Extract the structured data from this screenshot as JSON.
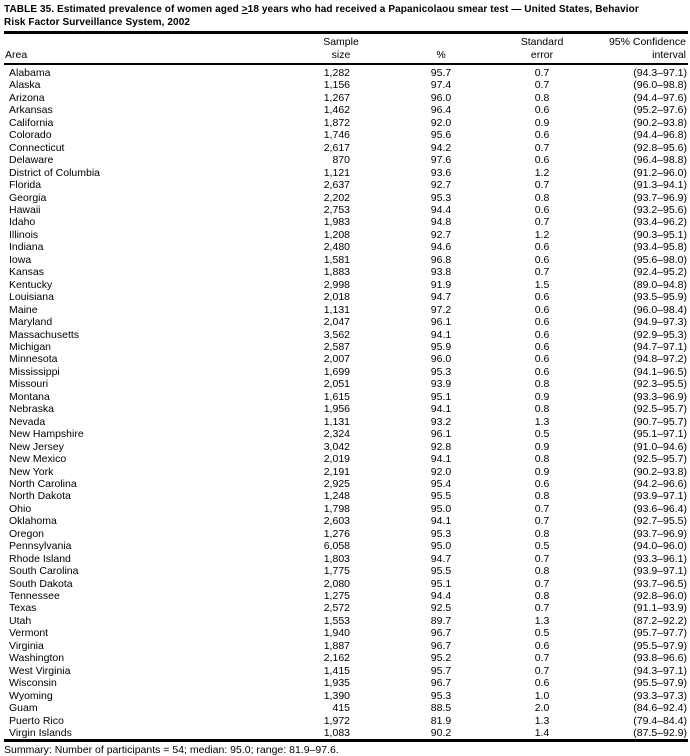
{
  "colors": {
    "text": "#000000",
    "background": "#ffffff"
  },
  "title": {
    "part1": "TABLE 35. Estimated prevalence of women aged ",
    "geq": ">",
    "part2": "18 years who had received a Papanicolaou smear test — United States, Behavior",
    "line2": "Risk Factor Surveillance System, 2002"
  },
  "table": {
    "columns": [
      "Area",
      "Sample\nsize",
      "%",
      "Standard\nerror",
      "95% Confidence\ninterval"
    ],
    "rows": [
      [
        "Alabama",
        "1,282",
        "95.7",
        "0.7",
        "(94.3–97.1)"
      ],
      [
        "Alaska",
        "1,156",
        "97.4",
        "0.7",
        "(96.0–98.8)"
      ],
      [
        "Arizona",
        "1,267",
        "96.0",
        "0.8",
        "(94.4–97.6)"
      ],
      [
        "Arkansas",
        "1,462",
        "96.4",
        "0.6",
        "(95.2–97.6)"
      ],
      [
        "California",
        "1,872",
        "92.0",
        "0.9",
        "(90.2–93.8)"
      ],
      [
        "Colorado",
        "1,746",
        "95.6",
        "0.6",
        "(94.4–96.8)"
      ],
      [
        "Connecticut",
        "2,617",
        "94.2",
        "0.7",
        "(92.8–95.6)"
      ],
      [
        "Delaware",
        "870",
        "97.6",
        "0.6",
        "(96.4–98.8)"
      ],
      [
        "District of Columbia",
        "1,121",
        "93.6",
        "1.2",
        "(91.2–96.0)"
      ],
      [
        "Florida",
        "2,637",
        "92.7",
        "0.7",
        "(91.3–94.1)"
      ],
      [
        "Georgia",
        "2,202",
        "95.3",
        "0.8",
        "(93.7–96.9)"
      ],
      [
        "Hawaii",
        "2,753",
        "94.4",
        "0.6",
        "(93.2–95.6)"
      ],
      [
        "Idaho",
        "1,983",
        "94.8",
        "0.7",
        "(93.4–96.2)"
      ],
      [
        "Illinois",
        "1,208",
        "92.7",
        "1.2",
        "(90.3–95.1)"
      ],
      [
        "Indiana",
        "2,480",
        "94.6",
        "0.6",
        "(93.4–95.8)"
      ],
      [
        "Iowa",
        "1,581",
        "96.8",
        "0.6",
        "(95.6–98.0)"
      ],
      [
        "Kansas",
        "1,883",
        "93.8",
        "0.7",
        "(92.4–95.2)"
      ],
      [
        "Kentucky",
        "2,998",
        "91.9",
        "1.5",
        "(89.0–94.8)"
      ],
      [
        "Louisiana",
        "2,018",
        "94.7",
        "0.6",
        "(93.5–95.9)"
      ],
      [
        "Maine",
        "1,131",
        "97.2",
        "0.6",
        "(96.0–98.4)"
      ],
      [
        "Maryland",
        "2,047",
        "96.1",
        "0.6",
        "(94.9–97.3)"
      ],
      [
        "Massachusetts",
        "3,562",
        "94.1",
        "0.6",
        "(92.9–95.3)"
      ],
      [
        "Michigan",
        "2,587",
        "95.9",
        "0.6",
        "(94.7–97.1)"
      ],
      [
        "Minnesota",
        "2,007",
        "96.0",
        "0.6",
        "(94.8–97.2)"
      ],
      [
        "Mississippi",
        "1,699",
        "95.3",
        "0.6",
        "(94.1–96.5)"
      ],
      [
        "Missouri",
        "2,051",
        "93.9",
        "0.8",
        "(92.3–95.5)"
      ],
      [
        "Montana",
        "1,615",
        "95.1",
        "0.9",
        "(93.3–96.9)"
      ],
      [
        "Nebraska",
        "1,956",
        "94.1",
        "0.8",
        "(92.5–95.7)"
      ],
      [
        "Nevada",
        "1,131",
        "93.2",
        "1.3",
        "(90.7–95.7)"
      ],
      [
        "New Hampshire",
        "2,324",
        "96.1",
        "0.5",
        "(95.1–97.1)"
      ],
      [
        "New Jersey",
        "3,042",
        "92.8",
        "0.9",
        "(91.0–94.6)"
      ],
      [
        "New Mexico",
        "2,019",
        "94.1",
        "0.8",
        "(92.5–95.7)"
      ],
      [
        "New York",
        "2,191",
        "92.0",
        "0.9",
        "(90.2–93.8)"
      ],
      [
        "North Carolina",
        "2,925",
        "95.4",
        "0.6",
        "(94.2–96.6)"
      ],
      [
        "North Dakota",
        "1,248",
        "95.5",
        "0.8",
        "(93.9–97.1)"
      ],
      [
        "Ohio",
        "1,798",
        "95.0",
        "0.7",
        "(93.6–96.4)"
      ],
      [
        "Oklahoma",
        "2,603",
        "94.1",
        "0.7",
        "(92.7–95.5)"
      ],
      [
        "Oregon",
        "1,276",
        "95.3",
        "0.8",
        "(93.7–96.9)"
      ],
      [
        "Pennsylvania",
        "6,058",
        "95.0",
        "0.5",
        "(94.0–96.0)"
      ],
      [
        "Rhode Island",
        "1,803",
        "94.7",
        "0.7",
        "(93.3–96.1)"
      ],
      [
        "South Carolina",
        "1,775",
        "95.5",
        "0.8",
        "(93.9–97.1)"
      ],
      [
        "South Dakota",
        "2,080",
        "95.1",
        "0.7",
        "(93.7–96.5)"
      ],
      [
        "Tennessee",
        "1,275",
        "94.4",
        "0.8",
        "(92.8–96.0)"
      ],
      [
        "Texas",
        "2,572",
        "92.5",
        "0.7",
        "(91.1–93.9)"
      ],
      [
        "Utah",
        "1,553",
        "89.7",
        "1.3",
        "(87.2–92.2)"
      ],
      [
        "Vermont",
        "1,940",
        "96.7",
        "0.5",
        "(95.7–97.7)"
      ],
      [
        "Virginia",
        "1,887",
        "96.7",
        "0.6",
        "(95.5–97.9)"
      ],
      [
        "Washington",
        "2,162",
        "95.2",
        "0.7",
        "(93.8–96.6)"
      ],
      [
        "West Virginia",
        "1,415",
        "95.7",
        "0.7",
        "(94.3–97.1)"
      ],
      [
        "Wisconsin",
        "1,935",
        "96.7",
        "0.6",
        "(95.5–97.9)"
      ],
      [
        "Wyoming",
        "1,390",
        "95.3",
        "1.0",
        "(93.3–97.3)"
      ],
      [
        "Guam",
        "415",
        "88.5",
        "2.0",
        "(84.6–92.4)"
      ],
      [
        "Puerto Rico",
        "1,972",
        "81.9",
        "1.3",
        "(79.4–84.4)"
      ],
      [
        "Virgin Islands",
        "1,083",
        "90.2",
        "1.4",
        "(87.5–92.9)"
      ]
    ]
  },
  "summary": "Summary: Number of participants = 54; median: 95.0; range: 81.9–97.6."
}
